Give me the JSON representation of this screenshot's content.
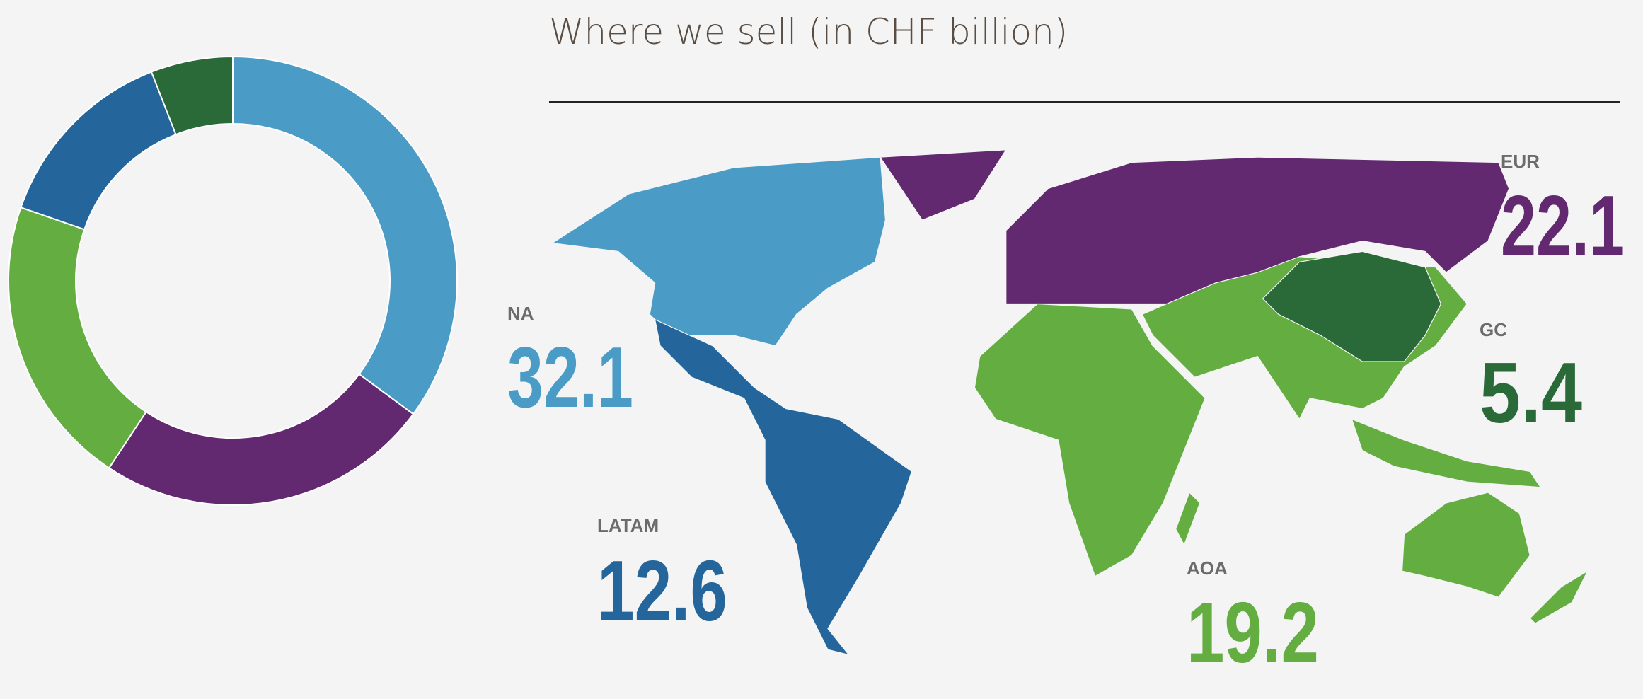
{
  "chart_data": {
    "type": "donut",
    "title": "Where we sell (in CHF billion)",
    "categories": [
      "NA",
      "EUR",
      "AOA",
      "LATAM",
      "GC"
    ],
    "values": [
      32.1,
      22.1,
      19.2,
      12.6,
      5.4
    ],
    "colors": [
      "#4a9cc7",
      "#622870",
      "#64ad41",
      "#24669c",
      "#2a6a39"
    ]
  }
}
